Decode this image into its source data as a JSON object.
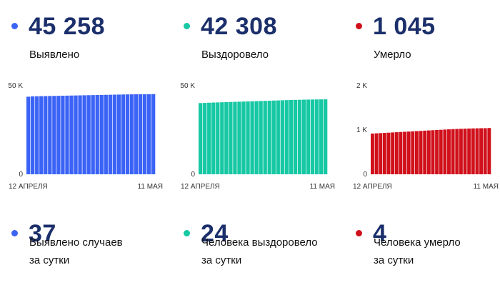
{
  "stats": [
    {
      "value": "45 258",
      "label": "Выявлено",
      "color": "#3b63f5"
    },
    {
      "value": "42 308",
      "label": "Выздоровело",
      "color": "#16c8a3"
    },
    {
      "value": "1 045",
      "label": "Умерло",
      "color": "#d0101b"
    }
  ],
  "daily": [
    {
      "value": "37",
      "line1": "Выявлено случаев",
      "line2": "за сутки",
      "color": "#3b63f5"
    },
    {
      "value": "24",
      "line1": "Человека выздоровело",
      "line2": "за сутки",
      "color": "#16c8a3"
    },
    {
      "value": "4",
      "line1": "Человека умерло",
      "line2": "за сутки",
      "color": "#d0101b"
    }
  ],
  "chart_data": [
    {
      "type": "bar",
      "color": "#3b63f5",
      "ylim": [
        0,
        50000
      ],
      "yticks": [
        "50 K",
        "0"
      ],
      "x_start_label": "12 АПРЕЛЯ",
      "x_end_label": "11 МАЯ",
      "grid": false,
      "series": [
        {
          "values": [
            43800,
            44000,
            44050,
            44100,
            44150,
            44200,
            44250,
            44300,
            44350,
            44400,
            44450,
            44500,
            44550,
            44600,
            44650,
            44700,
            44750,
            44800,
            44850,
            44900,
            44950,
            45000,
            45050,
            45100,
            45130,
            45160,
            45190,
            45210,
            45221,
            45258
          ]
        }
      ]
    },
    {
      "type": "bar",
      "color": "#16c8a3",
      "ylim": [
        0,
        50000
      ],
      "yticks": [
        "50 K",
        "0"
      ],
      "x_start_label": "12 АПРЕЛЯ",
      "x_end_label": "11 МАЯ",
      "grid": false,
      "series": [
        {
          "values": [
            40200,
            40300,
            40400,
            40500,
            40580,
            40660,
            40740,
            40820,
            40900,
            40980,
            41060,
            41140,
            41220,
            41300,
            41380,
            41460,
            41540,
            41620,
            41700,
            41780,
            41860,
            41940,
            42000,
            42060,
            42120,
            42170,
            42210,
            42250,
            42284,
            42308
          ]
        }
      ]
    },
    {
      "type": "bar",
      "color": "#d0101b",
      "ylim": [
        0,
        2000
      ],
      "yticks": [
        "2 K",
        "1 K",
        "0"
      ],
      "x_start_label": "12 АПРЕЛЯ",
      "x_end_label": "11 МАЯ",
      "grid": false,
      "series": [
        {
          "values": [
            920,
            925,
            930,
            935,
            940,
            945,
            950,
            955,
            960,
            965,
            970,
            975,
            980,
            985,
            990,
            995,
            1000,
            1005,
            1010,
            1015,
            1020,
            1024,
            1027,
            1030,
            1033,
            1036,
            1038,
            1040,
            1041,
            1045
          ]
        }
      ]
    }
  ]
}
